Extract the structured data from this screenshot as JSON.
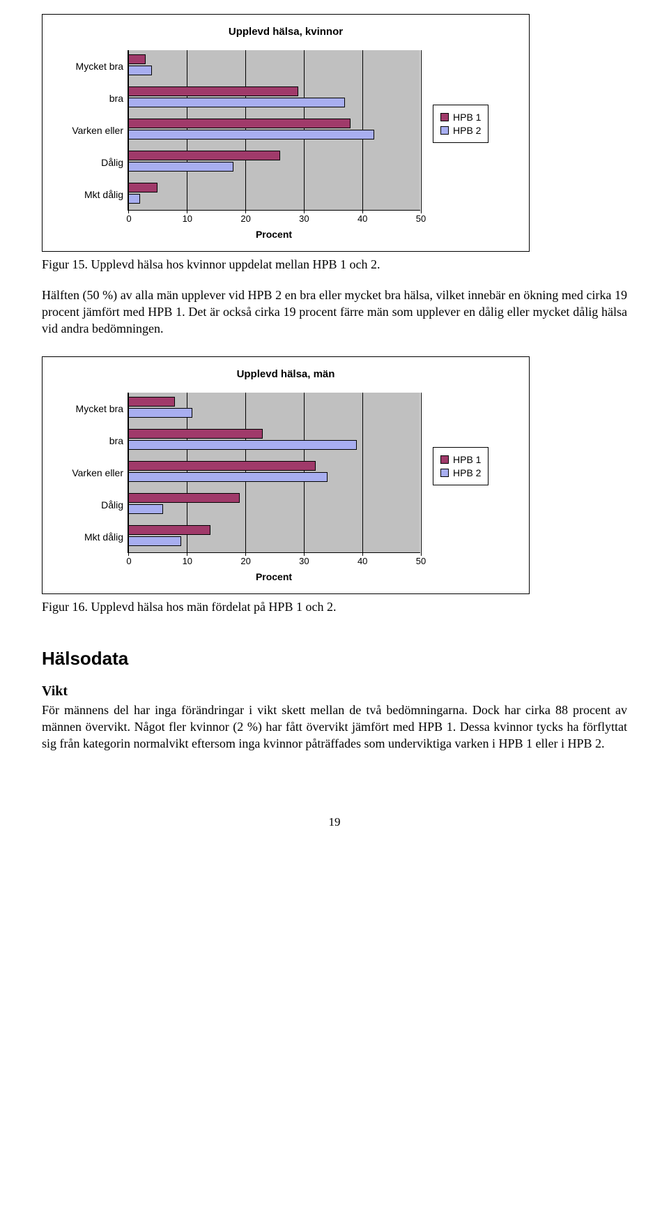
{
  "colors": {
    "hpb1": "#a03a6a",
    "hpb2": "#a8aef0",
    "plot_bg": "#c0c0c0",
    "border": "#000000"
  },
  "chart1": {
    "title": "Upplevd hälsa, kvinnor",
    "categories": [
      "Mycket bra",
      "bra",
      "Varken eller",
      "Dålig",
      "Mkt dålig"
    ],
    "series": [
      {
        "name": "HPB 1",
        "values": [
          3,
          29,
          38,
          26,
          5
        ]
      },
      {
        "name": "HPB 2",
        "values": [
          4,
          37,
          42,
          18,
          2
        ]
      }
    ],
    "xmax": 50,
    "xticks": [
      0,
      10,
      20,
      30,
      40,
      50
    ],
    "xlabel": "Procent"
  },
  "caption1": "Figur 15. Upplevd hälsa hos kvinnor uppdelat mellan HPB 1 och 2.",
  "paragraph1": "Hälften (50 %) av alla män upplever vid HPB 2 en bra eller mycket bra hälsa, vilket innebär en ökning med cirka 19 procent jämfört med HPB 1. Det är också cirka 19 procent färre män som upplever en dålig eller mycket dålig hälsa vid andra bedömningen.",
  "chart2": {
    "title": "Upplevd hälsa, män",
    "categories": [
      "Mycket bra",
      "bra",
      "Varken eller",
      "Dålig",
      "Mkt dålig"
    ],
    "series": [
      {
        "name": "HPB 1",
        "values": [
          8,
          23,
          32,
          19,
          14
        ]
      },
      {
        "name": "HPB 2",
        "values": [
          11,
          39,
          34,
          6,
          9
        ]
      }
    ],
    "xmax": 50,
    "xticks": [
      0,
      10,
      20,
      30,
      40,
      50
    ],
    "xlabel": "Procent"
  },
  "caption2": "Figur 16. Upplevd hälsa hos män fördelat på HPB 1 och 2.",
  "section_heading": "Hälsodata",
  "sub_heading": "Vikt",
  "paragraph2": "För männens del har inga förändringar i vikt skett mellan de två bedömningarna. Dock har cirka 88 procent av männen övervikt. Något fler kvinnor (2 %) har fått övervikt jämfört med HPB 1. Dessa kvinnor tycks ha förflyttat sig från kategorin normalvikt eftersom inga kvinnor påträffades som underviktiga varken i HPB 1 eller i HPB 2.",
  "page_number": "19",
  "legend_labels": [
    "HPB 1",
    "HPB 2"
  ]
}
